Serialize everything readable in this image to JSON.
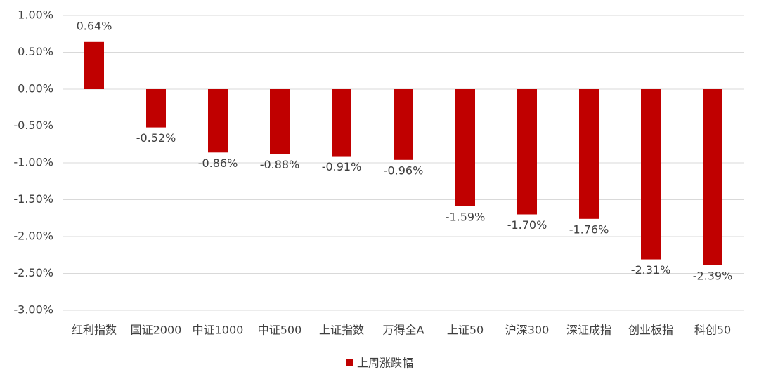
{
  "chart_data": {
    "type": "bar",
    "categories": [
      "红利指数",
      "国证2000",
      "中证1000",
      "中证500",
      "上证指数",
      "万得全A",
      "上证50",
      "沪深300",
      "深证成指",
      "创业板指",
      "科创50"
    ],
    "series": [
      {
        "name": "上周涨跌幅",
        "color": "#c00000",
        "values": [
          0.64,
          -0.52,
          -0.86,
          -0.88,
          -0.91,
          -0.96,
          -1.59,
          -1.7,
          -1.76,
          -2.31,
          -2.39
        ],
        "value_labels": [
          "0.64%",
          "-0.52%",
          "-0.86%",
          "-0.88%",
          "-0.91%",
          "-0.96%",
          "-1.59%",
          "-1.70%",
          "-1.76%",
          "-2.31%",
          "-2.39%"
        ]
      }
    ],
    "ylim": [
      -3,
      1
    ],
    "yticks": [
      {
        "value": 1,
        "label": "1.00%"
      },
      {
        "value": 0.5,
        "label": "0.50%"
      },
      {
        "value": 0,
        "label": "0.00%"
      },
      {
        "value": -0.5,
        "label": "-0.50%"
      },
      {
        "value": -1,
        "label": "-1.00%"
      },
      {
        "value": -1.5,
        "label": "-1.50%"
      },
      {
        "value": -2,
        "label": "-2.00%"
      },
      {
        "value": -2.5,
        "label": "-2.50%"
      },
      {
        "value": -3,
        "label": "-3.00%"
      }
    ],
    "grid": true,
    "legend": "bottom"
  }
}
